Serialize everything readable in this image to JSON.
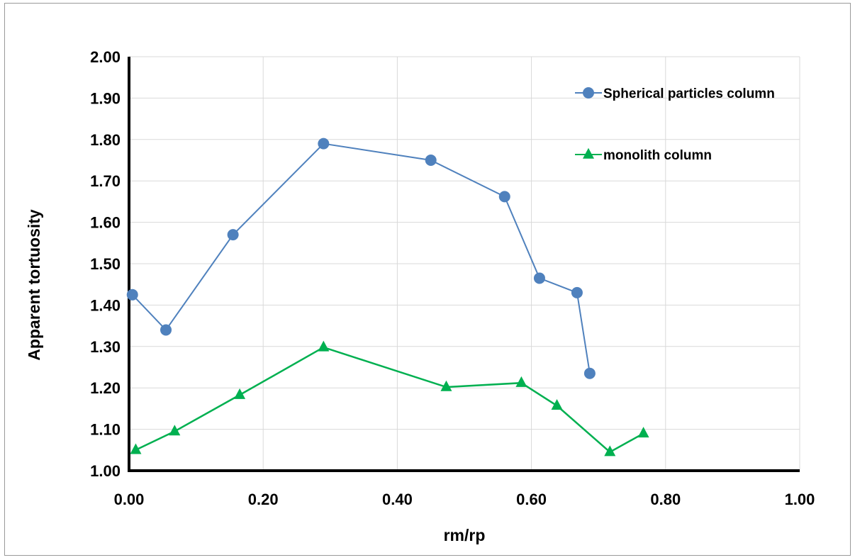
{
  "chart_data": {
    "type": "line",
    "title": "",
    "xlabel": "rm/rp",
    "ylabel": "Apparent tortuosity",
    "xlim": [
      0.0,
      1.0
    ],
    "ylim": [
      1.0,
      2.0
    ],
    "x_ticks": [
      "0.00",
      "0.20",
      "0.40",
      "0.60",
      "0.80",
      "1.00"
    ],
    "y_ticks": [
      "1.00",
      "1.10",
      "1.20",
      "1.30",
      "1.40",
      "1.50",
      "1.60",
      "1.70",
      "1.80",
      "1.90",
      "2.00"
    ],
    "grid": true,
    "legend_position": "top-right",
    "series": [
      {
        "name": "Spherical particles column",
        "color": "#4f81bd",
        "marker": "circle",
        "points": [
          {
            "x": 0.005,
            "y": 1.425
          },
          {
            "x": 0.055,
            "y": 1.34
          },
          {
            "x": 0.155,
            "y": 1.57
          },
          {
            "x": 0.29,
            "y": 1.79
          },
          {
            "x": 0.45,
            "y": 1.75
          },
          {
            "x": 0.56,
            "y": 1.662
          },
          {
            "x": 0.612,
            "y": 1.465
          },
          {
            "x": 0.668,
            "y": 1.43
          },
          {
            "x": 0.687,
            "y": 1.235
          }
        ]
      },
      {
        "name": "monolith column",
        "color": "#00b050",
        "marker": "triangle",
        "points": [
          {
            "x": 0.01,
            "y": 1.05
          },
          {
            "x": 0.068,
            "y": 1.095
          },
          {
            "x": 0.165,
            "y": 1.183
          },
          {
            "x": 0.29,
            "y": 1.298
          },
          {
            "x": 0.473,
            "y": 1.202
          },
          {
            "x": 0.585,
            "y": 1.212
          },
          {
            "x": 0.638,
            "y": 1.157
          },
          {
            "x": 0.717,
            "y": 1.045
          },
          {
            "x": 0.767,
            "y": 1.09
          }
        ]
      }
    ]
  }
}
